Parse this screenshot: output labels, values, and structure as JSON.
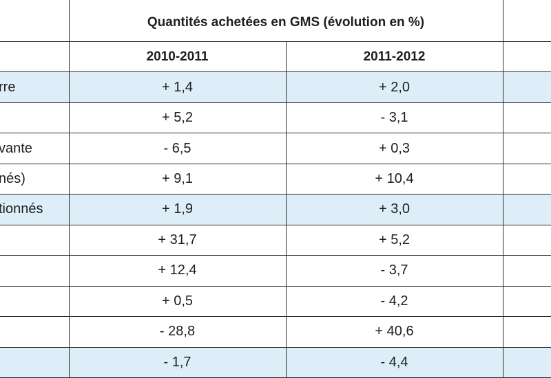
{
  "table": {
    "title": "Quantités achetées en GMS (évolution en %)",
    "columns": [
      "",
      "2010-2011",
      "2011-2012",
      ""
    ],
    "rows": [
      {
        "label": "rre",
        "v1": "+ 1,4",
        "v2": "+ 2,0",
        "shaded": true
      },
      {
        "label": "",
        "v1": "+ 5,2",
        "v2": "- 3,1",
        "shaded": false
      },
      {
        "label": "vante",
        "v1": "- 6,5",
        "v2": "+ 0,3",
        "shaded": false
      },
      {
        "label": "nés)",
        "v1": "+ 9,1",
        "v2": "+ 10,4",
        "shaded": false
      },
      {
        "label": "tionnés",
        "v1": "+ 1,9",
        "v2": "+ 3,0",
        "shaded": true
      },
      {
        "label": "",
        "v1": "+ 31,7",
        "v2": "+ 5,2",
        "shaded": false
      },
      {
        "label": "",
        "v1": "+ 12,4",
        "v2": "- 3,7",
        "shaded": false
      },
      {
        "label": "",
        "v1": "+ 0,5",
        "v2": "- 4,2",
        "shaded": false
      },
      {
        "label": "",
        "v1": "- 28,8",
        "v2": "+ 40,6",
        "shaded": false
      },
      {
        "label": "",
        "v1": "- 1,7",
        "v2": "- 4,4",
        "shaded": true
      }
    ]
  }
}
